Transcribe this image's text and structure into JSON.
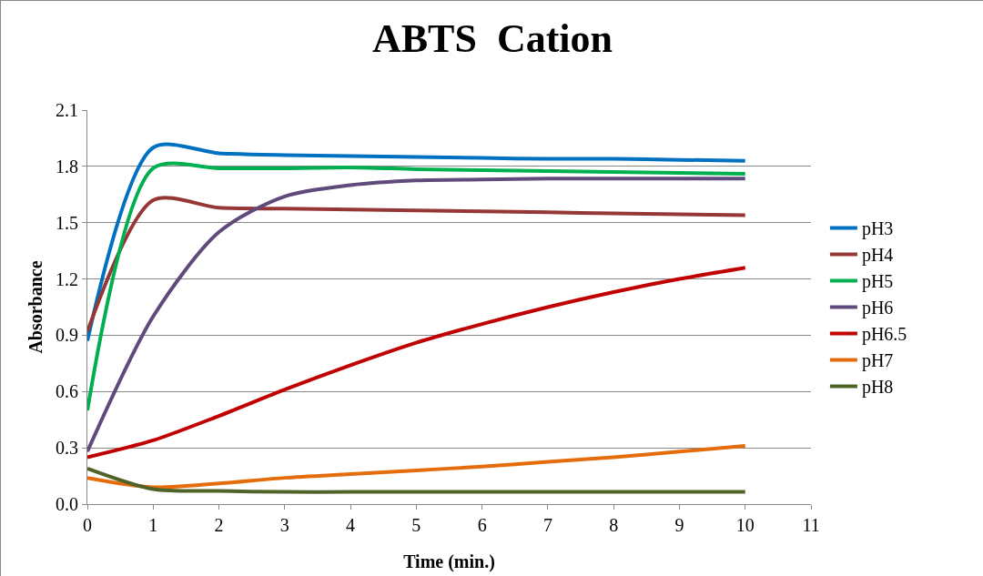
{
  "chart_data": {
    "type": "line",
    "title": "ABTS  Cation",
    "xlabel": "Time (min.)",
    "ylabel": "Absorbance",
    "x": [
      0,
      1,
      2,
      3,
      4,
      5,
      6,
      7,
      8,
      9,
      10
    ],
    "series": [
      {
        "name": "pH3",
        "color": "#0070c0",
        "values": [
          0.87,
          1.9,
          1.87,
          1.86,
          1.855,
          1.85,
          1.845,
          1.84,
          1.84,
          1.835,
          1.83
        ]
      },
      {
        "name": "pH4",
        "color": "#953735",
        "values": [
          0.92,
          1.62,
          1.58,
          1.575,
          1.57,
          1.565,
          1.56,
          1.555,
          1.55,
          1.545,
          1.54
        ]
      },
      {
        "name": "pH5",
        "color": "#00b050",
        "values": [
          0.5,
          1.79,
          1.79,
          1.79,
          1.795,
          1.785,
          1.78,
          1.775,
          1.77,
          1.765,
          1.76
        ]
      },
      {
        "name": "pH6",
        "color": "#604a7b",
        "values": [
          0.28,
          1.0,
          1.45,
          1.64,
          1.7,
          1.725,
          1.73,
          1.735,
          1.735,
          1.735,
          1.735
        ]
      },
      {
        "name": "pH6.5",
        "color": "#c00000",
        "values": [
          0.25,
          0.34,
          0.47,
          0.61,
          0.74,
          0.86,
          0.96,
          1.05,
          1.13,
          1.2,
          1.26
        ]
      },
      {
        "name": "pH7",
        "color": "#e46c0a",
        "values": [
          0.14,
          0.09,
          0.11,
          0.14,
          0.16,
          0.18,
          0.2,
          0.225,
          0.25,
          0.28,
          0.31
        ]
      },
      {
        "name": "pH8",
        "color": "#4f6228",
        "values": [
          0.19,
          0.08,
          0.07,
          0.065,
          0.065,
          0.065,
          0.065,
          0.065,
          0.065,
          0.065,
          0.065
        ]
      }
    ],
    "xlim": [
      0,
      11
    ],
    "xticks": [
      0,
      1,
      2,
      3,
      4,
      5,
      6,
      7,
      8,
      9,
      10,
      11
    ],
    "ylim": [
      0,
      2.1
    ],
    "yticks": [
      {
        "value": 0,
        "label": "0.0"
      },
      0.3,
      0.6,
      0.9,
      1.2,
      1.5,
      1.8,
      2.1
    ],
    "grid": "y",
    "legend": "right",
    "marker": "none",
    "line_style": "solid"
  }
}
